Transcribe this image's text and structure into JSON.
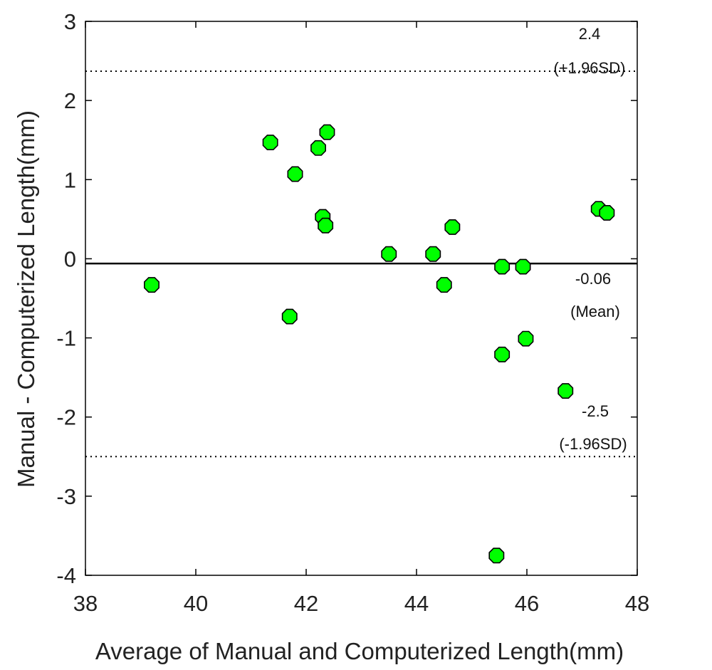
{
  "chart_data": {
    "type": "scatter",
    "xlabel": "Average of Manual and Computerized Length(mm)",
    "ylabel": "Manual - Computerized Length(mm)",
    "xlim": [
      38,
      48
    ],
    "ylim": [
      -4,
      3
    ],
    "xticks": [
      "38",
      "40",
      "42",
      "44",
      "46",
      "48"
    ],
    "yticks": [
      "3",
      "2",
      "1",
      "0",
      "-1",
      "-2",
      "-3",
      "-4"
    ],
    "grid": false,
    "marker_color": "#00ff00",
    "marker_edge": "#000000",
    "points": [
      {
        "x": 39.2,
        "y": -0.33
      },
      {
        "x": 41.35,
        "y": 1.47
      },
      {
        "x": 41.7,
        "y": -0.73
      },
      {
        "x": 41.8,
        "y": 1.07
      },
      {
        "x": 42.22,
        "y": 1.4
      },
      {
        "x": 42.3,
        "y": 0.53
      },
      {
        "x": 42.35,
        "y": 0.42
      },
      {
        "x": 42.38,
        "y": 1.6
      },
      {
        "x": 43.5,
        "y": 0.06
      },
      {
        "x": 44.3,
        "y": 0.06
      },
      {
        "x": 44.5,
        "y": -0.33
      },
      {
        "x": 44.65,
        "y": 0.4
      },
      {
        "x": 45.45,
        "y": -3.75
      },
      {
        "x": 45.55,
        "y": -0.1
      },
      {
        "x": 45.55,
        "y": -1.21
      },
      {
        "x": 45.93,
        "y": -0.1
      },
      {
        "x": 45.98,
        "y": -1.01
      },
      {
        "x": 46.7,
        "y": -1.67
      },
      {
        "x": 47.3,
        "y": 0.63
      },
      {
        "x": 47.45,
        "y": 0.58
      }
    ],
    "reference_lines": [
      {
        "y": 2.37,
        "style": "dotted",
        "value_label": "2.4",
        "desc_label": "(+1.96SD)"
      },
      {
        "y": -0.06,
        "style": "solid",
        "value_label": "-0.06",
        "desc_label": "(Mean)"
      },
      {
        "y": -2.5,
        "style": "dotted",
        "value_label": "-2.5",
        "desc_label": "(-1.96SD)"
      }
    ]
  }
}
